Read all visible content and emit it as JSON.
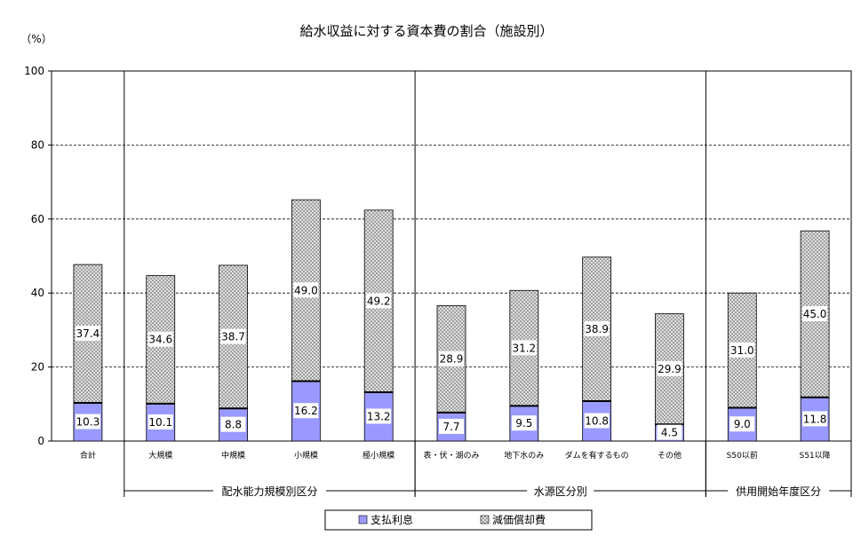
{
  "chart_data": {
    "type": "bar",
    "stacked": true,
    "title": "給水収益に対する資本費の割合（施設別）",
    "ylabel": "（%）",
    "ylim": [
      0,
      100
    ],
    "yticks": [
      0,
      20,
      40,
      60,
      80,
      100
    ],
    "grid": true,
    "legend_position": "bottom",
    "categories": [
      "合計",
      "大規模",
      "中規模",
      "小規模",
      "極小規模",
      "表・伏・湖のみ",
      "地下水のみ",
      "ダムを有するもの",
      "その他",
      "S50以前",
      "S51以降"
    ],
    "series": [
      {
        "name": "支払利息",
        "color": "#9999ff",
        "pattern": "solid",
        "values": [
          10.3,
          10.1,
          8.8,
          16.2,
          13.2,
          7.7,
          9.5,
          10.8,
          4.5,
          9.0,
          11.8
        ]
      },
      {
        "name": "減価償却費",
        "color": "#c0c0c0",
        "pattern": "crosshatch",
        "values": [
          37.4,
          34.6,
          38.7,
          49.0,
          49.2,
          28.9,
          31.2,
          38.9,
          29.9,
          31.0,
          45.0
        ]
      }
    ],
    "groups": [
      {
        "label": "配水能力規模別区分",
        "first": 1,
        "last": 4
      },
      {
        "label": "水源区分別",
        "first": 5,
        "last": 8
      },
      {
        "label": "供用開始年度区分",
        "first": 9,
        "last": 10
      }
    ]
  }
}
